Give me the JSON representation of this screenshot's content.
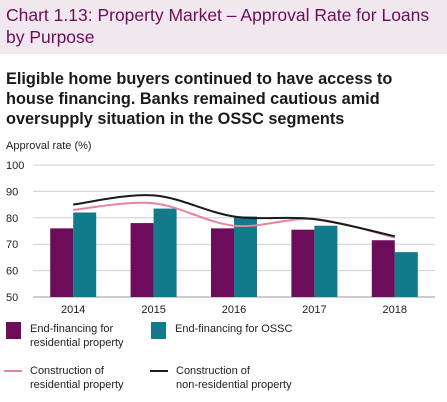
{
  "header": {
    "title": "Chart 1.13: Property Market – Approval Rate for Loans by Purpose",
    "subtitle": "Eligible home buyers continued to have access to house financing. Banks remained cautious amid oversupply situation in the OSSC segments"
  },
  "chart_data": {
    "type": "bar",
    "ylabel": "Approval rate (%)",
    "ylim": [
      50,
      100
    ],
    "yticks": [
      50,
      60,
      70,
      80,
      90,
      100
    ],
    "grid": true,
    "legend_position": "bottom",
    "categories": [
      "2014",
      "2015",
      "2016",
      "2017",
      "2018"
    ],
    "series": [
      {
        "name": "End-financing for\nresidential property",
        "kind": "bar",
        "color": "#6e0c5c",
        "values": [
          76,
          78,
          76,
          75.5,
          71.5
        ]
      },
      {
        "name": "End-financing for OSSC",
        "kind": "bar",
        "color": "#127a8a",
        "values": [
          82,
          83.5,
          80.5,
          77,
          67
        ]
      },
      {
        "name": "Construction of\nresidential property",
        "kind": "line",
        "color": "#e8849a",
        "values": [
          83,
          85.5,
          77,
          79.5,
          72.5
        ]
      },
      {
        "name": "Construction of\nnon-residential property",
        "kind": "line",
        "color": "#1a1a1a",
        "values": [
          85,
          88.5,
          80.5,
          79.5,
          73
        ]
      }
    ]
  }
}
